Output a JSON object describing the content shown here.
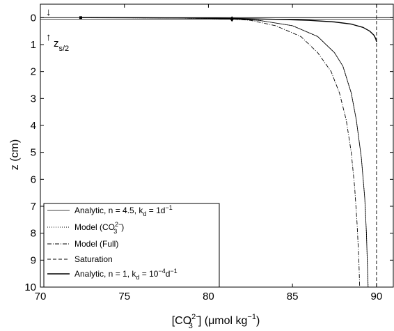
{
  "chart_data": {
    "type": "line",
    "xlabel": {
      "prefix": "[CO",
      "sup": "2−",
      "sub": "3",
      "suffix": "] (μmol kg",
      "sup2": "−1",
      "end": ")"
    },
    "ylabel": "z (cm)",
    "xlim": [
      70,
      91
    ],
    "ylim": [
      -0.5,
      10
    ],
    "y_reversed": true,
    "xticks": [
      70,
      75,
      80,
      85,
      90
    ],
    "yticks": [
      0,
      1,
      2,
      3,
      4,
      5,
      6,
      7,
      8,
      9,
      10
    ],
    "grid": false,
    "legend_position": "bottom-left",
    "annotations": {
      "top_arrow": "↓",
      "bottom_arrow": "↑",
      "zs_label": "z",
      "zs_sub": "s/2"
    },
    "reference_lines": [
      {
        "axis": "y",
        "value": 0
      },
      {
        "axis": "y",
        "value": 0.06
      }
    ],
    "series": [
      {
        "name": "Analytic, n = 4.5, k",
        "name_sub": "d",
        "name_mid": " = 1d",
        "name_sup": "−1",
        "style": "solid-thin",
        "x": [
          72.4,
          75,
          78,
          80,
          81.4,
          83,
          85,
          86.5,
          87.5,
          88,
          88.5,
          88.8,
          89.1,
          89.3,
          89.4,
          89.45,
          89.5
        ],
        "y": [
          0,
          0.005,
          0.015,
          0.03,
          0.05,
          0.1,
          0.3,
          0.7,
          1.3,
          1.8,
          2.8,
          3.8,
          5.2,
          6.7,
          8,
          9,
          10
        ]
      },
      {
        "name": "Model (CO",
        "name_sub": "3",
        "name_sup": "2−",
        "name_end": ")",
        "style": "dotted",
        "x": [
          72.4,
          75,
          78,
          80,
          81.4,
          83,
          85,
          86.5,
          87.5,
          88,
          88.5,
          88.8,
          89.1,
          89.3,
          89.4,
          89.45,
          89.5
        ],
        "y": [
          0,
          0.005,
          0.015,
          0.03,
          0.05,
          0.1,
          0.3,
          0.7,
          1.3,
          1.8,
          2.8,
          3.8,
          5.2,
          6.7,
          8,
          9,
          10
        ]
      },
      {
        "name": "Model (Full)",
        "style": "dashdot",
        "x": [
          72.4,
          75,
          78,
          80,
          81.4,
          82.5,
          84,
          85.5,
          86.5,
          87.3,
          87.8,
          88.2,
          88.5,
          88.7,
          88.85,
          88.95,
          89
        ],
        "y": [
          0,
          0.005,
          0.015,
          0.03,
          0.05,
          0.1,
          0.3,
          0.7,
          1.3,
          2,
          2.8,
          3.8,
          5,
          6.3,
          7.7,
          9,
          10
        ]
      },
      {
        "name": "Saturation",
        "style": "dashed",
        "x": [
          90,
          90
        ],
        "y": [
          -0.5,
          10
        ]
      },
      {
        "name": "Analytic, n = 1, k",
        "name_sub": "d",
        "name_mid": " = 10",
        "name_sup": "−4",
        "name_end": "d",
        "name_sup2": "−1",
        "style": "solid",
        "x": [
          72.4,
          76,
          80,
          81.4,
          84,
          86,
          87.5,
          88.5,
          89.2,
          89.6,
          89.85,
          89.95,
          90
        ],
        "y": [
          0,
          0.005,
          0.02,
          0.03,
          0.06,
          0.1,
          0.16,
          0.24,
          0.36,
          0.5,
          0.65,
          0.78,
          0.9
        ]
      }
    ],
    "markers": [
      {
        "x": 72.4,
        "y": 0,
        "shape": "square"
      },
      {
        "x": 81.4,
        "y": 0.05,
        "shape": "diamond"
      }
    ]
  }
}
